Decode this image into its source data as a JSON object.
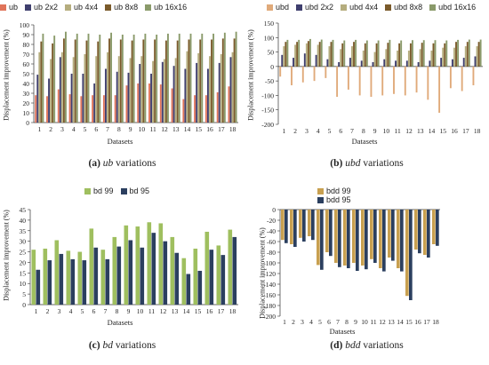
{
  "chart_data": [
    {
      "id": "a",
      "type": "bar",
      "caption_tag": "(a)",
      "caption_var": "ub",
      "caption_rest": "variations",
      "xlabel": "Datasets",
      "ylabel": "Displacement improvement (%)",
      "ylim": [
        0,
        100
      ],
      "yticks": [
        0,
        10,
        20,
        30,
        40,
        50,
        60,
        70,
        80,
        90,
        100
      ],
      "categories": [
        "1",
        "2",
        "3",
        "4",
        "5",
        "6",
        "7",
        "8",
        "9",
        "10",
        "11",
        "12",
        "13",
        "14",
        "15",
        "16",
        "17",
        "18"
      ],
      "series": [
        {
          "name": "ub",
          "color": "#e0745a",
          "values": [
            28,
            27,
            34,
            29,
            27,
            28,
            28,
            28,
            38,
            40,
            40,
            39,
            35,
            24,
            28,
            28,
            31,
            37
          ]
        },
        {
          "name": "ub 2x2",
          "color": "#3f3f6e",
          "values": [
            49,
            45,
            67,
            50,
            50,
            40,
            55,
            52,
            51,
            60,
            50,
            62,
            58,
            55,
            61,
            55,
            61,
            67
          ]
        },
        {
          "name": "ub 4x4",
          "color": "#b5ad7e",
          "values": [
            72,
            65,
            72,
            67,
            70,
            68,
            72,
            68,
            66,
            68,
            63,
            65,
            66,
            73,
            71,
            68,
            70,
            72
          ]
        },
        {
          "name": "ub 8x8",
          "color": "#7a5a2a",
          "values": [
            83,
            81,
            86,
            85,
            84,
            83,
            86,
            85,
            84,
            85,
            85,
            84,
            84,
            85,
            85,
            85,
            86,
            86
          ]
        },
        {
          "name": "ub 16x16",
          "color": "#8a9a6a",
          "values": [
            91,
            89,
            93,
            91,
            91,
            90,
            92,
            90,
            90,
            91,
            90,
            91,
            91,
            91,
            91,
            91,
            92,
            93
          ]
        }
      ]
    },
    {
      "id": "b",
      "type": "bar",
      "caption_tag": "(b)",
      "caption_var": "ubd",
      "caption_rest": "variations",
      "xlabel": "Datasets",
      "ylabel": "Displacement improvement (%)",
      "ylim": [
        -200,
        150
      ],
      "yticks": [
        -200,
        -150,
        -100,
        -50,
        0,
        50,
        100,
        150
      ],
      "categories": [
        "1",
        "2",
        "3",
        "4",
        "5",
        "6",
        "7",
        "8",
        "9",
        "10",
        "11",
        "12",
        "13",
        "14",
        "15",
        "16",
        "17",
        "18"
      ],
      "series": [
        {
          "name": "ubd",
          "color": "#e0aa7a",
          "values": [
            -35,
            -65,
            -55,
            -50,
            -40,
            -105,
            -80,
            -100,
            -105,
            -100,
            -95,
            -100,
            -90,
            -115,
            -160,
            -75,
            -85,
            -65
          ]
        },
        {
          "name": "ubd 2x2",
          "color": "#3f3f6e",
          "values": [
            40,
            30,
            45,
            40,
            25,
            15,
            30,
            20,
            15,
            25,
            20,
            20,
            15,
            20,
            30,
            25,
            30,
            35
          ]
        },
        {
          "name": "ubd 4x4",
          "color": "#b5ad7e",
          "values": [
            70,
            75,
            80,
            75,
            70,
            60,
            70,
            55,
            50,
            60,
            55,
            55,
            60,
            55,
            65,
            65,
            70,
            70
          ]
        },
        {
          "name": "ubd 8x8",
          "color": "#7a5a2a",
          "values": [
            85,
            85,
            88,
            85,
            85,
            80,
            85,
            80,
            80,
            82,
            80,
            80,
            82,
            80,
            80,
            85,
            85,
            85
          ]
        },
        {
          "name": "ubd 16x16",
          "color": "#8a9a6a",
          "values": [
            92,
            92,
            95,
            93,
            92,
            90,
            92,
            90,
            90,
            92,
            90,
            91,
            91,
            91,
            90,
            92,
            93,
            93
          ]
        }
      ]
    },
    {
      "id": "c",
      "type": "bar",
      "caption_tag": "(c)",
      "caption_var": "bd",
      "caption_rest": "variations",
      "xlabel": "Datasets",
      "ylabel": "Displacement improvement (%)",
      "ylim": [
        0,
        45
      ],
      "yticks": [
        0,
        5,
        10,
        15,
        20,
        25,
        30,
        35,
        40,
        45
      ],
      "categories": [
        "1",
        "2",
        "3",
        "4",
        "5",
        "6",
        "7",
        "8",
        "9",
        "10",
        "11",
        "12",
        "13",
        "14",
        "15",
        "16",
        "17",
        "18"
      ],
      "series": [
        {
          "name": "bd 99",
          "color": "#9fbf5f",
          "values": [
            26,
            26.5,
            30.5,
            25.5,
            25,
            36,
            26,
            32,
            37.5,
            37,
            39,
            38.5,
            32,
            22,
            26.5,
            34.5,
            28,
            35.5
          ]
        },
        {
          "name": "bd 95",
          "color": "#2b3f5f",
          "values": [
            16.5,
            21,
            24,
            21.5,
            21,
            27,
            21.5,
            27.5,
            30.5,
            27,
            34,
            30,
            24.5,
            14.5,
            16,
            26,
            23.5,
            32
          ]
        }
      ]
    },
    {
      "id": "d",
      "type": "bar",
      "caption_tag": "(d)",
      "caption_var": "bdd",
      "caption_rest": "variations",
      "xlabel": "Datasets",
      "ylabel": "Displacement improvement (%)",
      "ylim": [
        -200,
        0
      ],
      "yticks": [
        -200,
        -180,
        -160,
        -140,
        -120,
        -100,
        -80,
        -60,
        -40,
        -20,
        0
      ],
      "categories": [
        "1",
        "2",
        "3",
        "4",
        "5",
        "6",
        "7",
        "8",
        "9",
        "10",
        "11",
        "12",
        "13",
        "14",
        "15",
        "16",
        "17",
        "18"
      ],
      "series": [
        {
          "name": "bdd 99",
          "color": "#c8a050",
          "values": [
            -57,
            -65,
            -53,
            -50,
            -104,
            -80,
            -100,
            -105,
            -100,
            -105,
            -93,
            -110,
            -90,
            -110,
            -162,
            -75,
            -85,
            -65
          ]
        },
        {
          "name": "bdd 95",
          "color": "#2b3f5f",
          "values": [
            -63,
            -70,
            -60,
            -57,
            -113,
            -87,
            -108,
            -110,
            -115,
            -112,
            -100,
            -116,
            -96,
            -116,
            -170,
            -82,
            -90,
            -68
          ]
        }
      ]
    }
  ]
}
